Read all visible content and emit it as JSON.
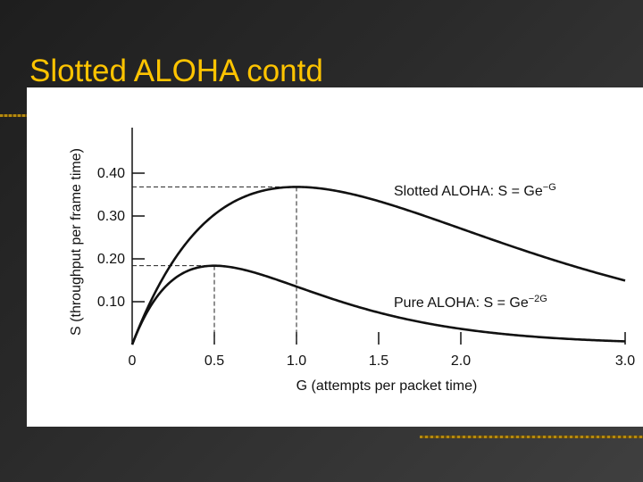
{
  "slide": {
    "title": "Slotted ALOHA contd"
  },
  "chart_data": {
    "type": "line",
    "xlabel": "G (attempts per packet time)",
    "ylabel": "S (throughput per frame time)",
    "xlim": [
      0,
      3.0
    ],
    "ylim": [
      0,
      0.5
    ],
    "x_ticks": [
      "0",
      "0.5",
      "1.0",
      "1.5",
      "2.0",
      "3.0"
    ],
    "x_tick_values": [
      0,
      0.5,
      1.0,
      1.5,
      2.0,
      3.0
    ],
    "y_ticks": [
      "0.10",
      "0.20",
      "0.30",
      "0.40"
    ],
    "y_tick_values": [
      0.1,
      0.2,
      0.3,
      0.4
    ],
    "series": [
      {
        "name": "Slotted ALOHA: S = Ge",
        "exponent": "−G",
        "formula": "G*exp(-G)",
        "peak": [
          1.0,
          0.368
        ]
      },
      {
        "name": "Pure ALOHA: S = Ge",
        "exponent": "−2G",
        "formula": "G*exp(-2G)",
        "peak": [
          0.5,
          0.184
        ]
      }
    ],
    "grid": false,
    "legend": "inline labels"
  }
}
